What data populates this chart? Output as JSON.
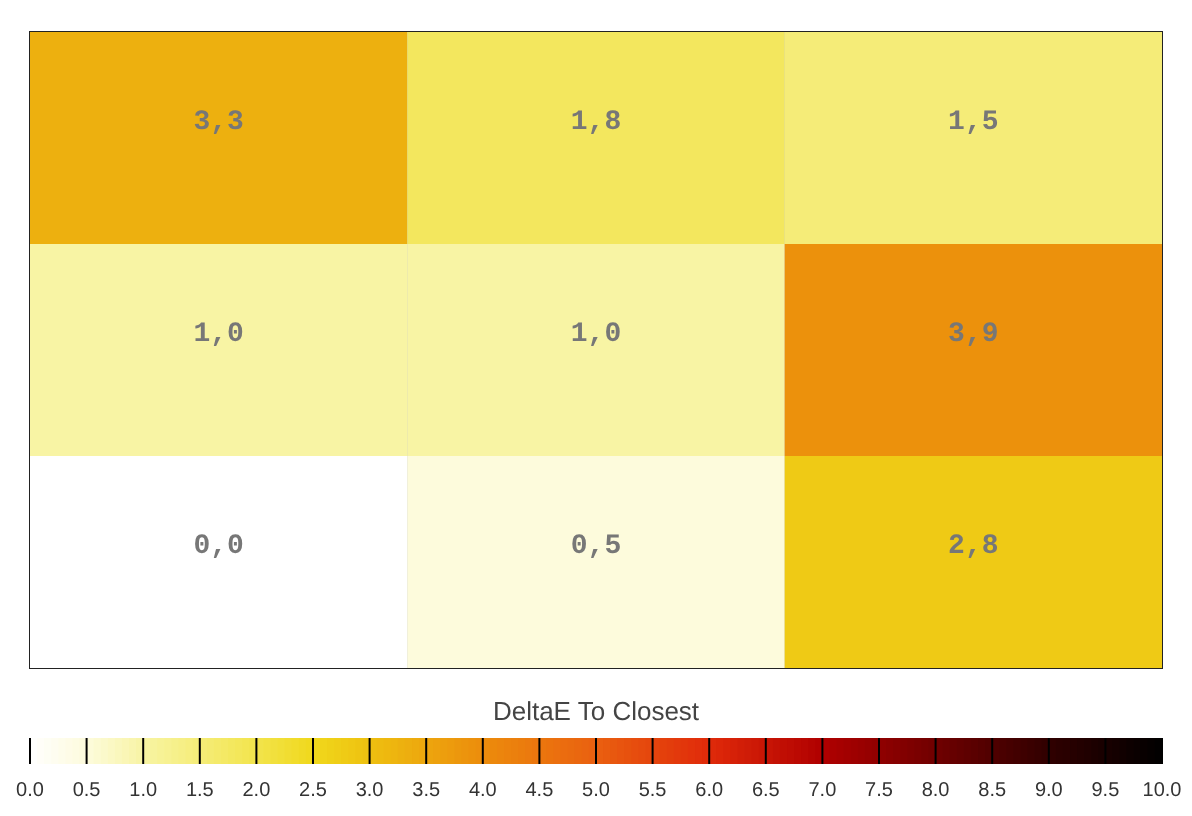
{
  "chart_data": {
    "type": "heatmap",
    "categories": [
      null,
      null,
      null
    ],
    "y_categories": [
      null,
      null,
      null
    ],
    "cells": [
      [
        3.3,
        1.8,
        1.5
      ],
      [
        1.0,
        1.0,
        3.9
      ],
      [
        0.0,
        0.5,
        2.8
      ]
    ],
    "cell_labels": [
      [
        "3,3",
        "1,8",
        "1,5"
      ],
      [
        "1,0",
        "1,0",
        "3,9"
      ],
      [
        "0,0",
        "0,5",
        "2,8"
      ]
    ],
    "clabel": "DeltaE To Closest",
    "clim": [
      0,
      10
    ],
    "cticks": [
      {
        "value": 0,
        "label": "0.0"
      },
      {
        "value": 0.5,
        "label": "0.5"
      },
      {
        "value": 1,
        "label": "1.0"
      },
      {
        "value": 1.5,
        "label": "1.5"
      },
      {
        "value": 2,
        "label": "2.0"
      },
      {
        "value": 2.5,
        "label": "2.5"
      },
      {
        "value": 3,
        "label": "3.0"
      },
      {
        "value": 3.5,
        "label": "3.5"
      },
      {
        "value": 4,
        "label": "4.0"
      },
      {
        "value": 4.5,
        "label": "4.5"
      },
      {
        "value": 5,
        "label": "5.0"
      },
      {
        "value": 5.5,
        "label": "5.5"
      },
      {
        "value": 6,
        "label": "6.0"
      },
      {
        "value": 6.5,
        "label": "6.5"
      },
      {
        "value": 7,
        "label": "7.0"
      },
      {
        "value": 7.5,
        "label": "7.5"
      },
      {
        "value": 8,
        "label": "8.0"
      },
      {
        "value": 8.5,
        "label": "8.5"
      },
      {
        "value": 9,
        "label": "9.0"
      },
      {
        "value": 9.5,
        "label": "9.5"
      },
      {
        "value": 10,
        "label": "10.0"
      }
    ],
    "grid": true
  }
}
